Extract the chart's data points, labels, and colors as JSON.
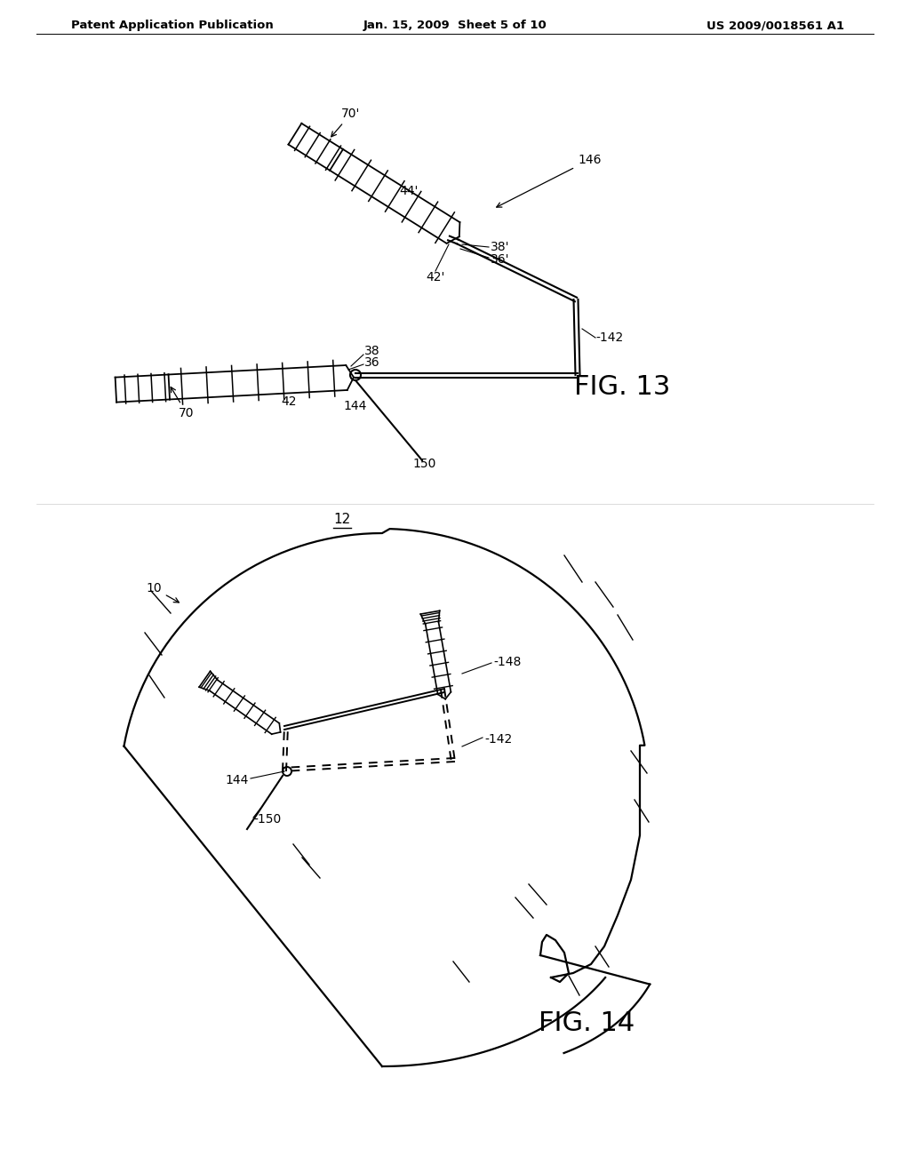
{
  "bg_color": "#ffffff",
  "header_left": "Patent Application Publication",
  "header_center": "Jan. 15, 2009  Sheet 5 of 10",
  "header_right": "US 2009/0018561 A1",
  "fig13_label": "FIG. 13",
  "fig14_label": "FIG. 14",
  "line_color": "#000000",
  "label_fontsize": 10,
  "header_fontsize": 9.5,
  "fig_label_fontsize": 22
}
